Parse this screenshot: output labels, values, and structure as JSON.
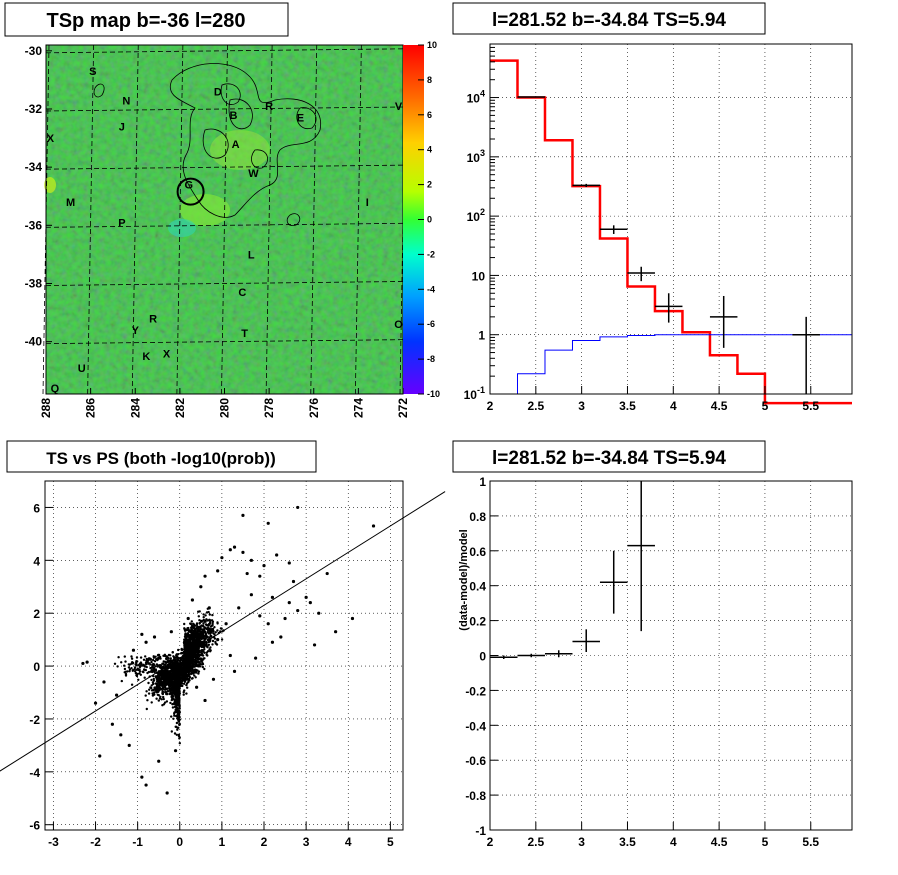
{
  "chart_data": [
    {
      "type": "heatmap",
      "title": "TSp map b=-36 l=280",
      "xlabel": "",
      "ylabel": "",
      "x_ticks": [
        "288",
        "286",
        "284",
        "282",
        "280",
        "278",
        "276",
        "274",
        "272"
      ],
      "y_ticks": [
        "-30",
        "-32",
        "-34",
        "-36",
        "-38",
        "-40"
      ],
      "colorbar_ticks": [
        "10",
        "8",
        "6",
        "4",
        "2",
        "0",
        "-2",
        "-4",
        "-6",
        "-8",
        "-10"
      ],
      "xlim": [
        288,
        272
      ],
      "ylim": [
        -41.8,
        -29.8
      ],
      "zlim": [
        -10,
        10
      ],
      "background_value": 0.5,
      "source_labels": [
        {
          "name": "S",
          "l": 285.9,
          "b": -30.7
        },
        {
          "name": "N",
          "l": 284.4,
          "b": -31.7
        },
        {
          "name": "J",
          "l": 284.6,
          "b": -32.6
        },
        {
          "name": "D",
          "l": 280.3,
          "b": -31.4
        },
        {
          "name": "R",
          "l": 278.0,
          "b": -31.9
        },
        {
          "name": "B",
          "l": 279.6,
          "b": -32.2
        },
        {
          "name": "E",
          "l": 276.6,
          "b": -32.3
        },
        {
          "name": "V",
          "l": 272.2,
          "b": -31.9
        },
        {
          "name": "X",
          "l": 287.8,
          "b": -33.0
        },
        {
          "name": "A",
          "l": 279.5,
          "b": -33.2
        },
        {
          "name": "W",
          "l": 278.7,
          "b": -34.2
        },
        {
          "name": "G",
          "l": 281.6,
          "b": -34.6
        },
        {
          "name": "M",
          "l": 286.9,
          "b": -35.2
        },
        {
          "name": "I",
          "l": 273.6,
          "b": -35.2
        },
        {
          "name": "P",
          "l": 284.6,
          "b": -35.9
        },
        {
          "name": "L",
          "l": 278.8,
          "b": -37.0
        },
        {
          "name": "C",
          "l": 279.2,
          "b": -38.3
        },
        {
          "name": "R",
          "l": 283.2,
          "b": -39.2
        },
        {
          "name": "Y",
          "l": 284.0,
          "b": -39.6
        },
        {
          "name": "T",
          "l": 279.1,
          "b": -39.7
        },
        {
          "name": "O",
          "l": 272.2,
          "b": -39.4
        },
        {
          "name": "X",
          "l": 282.6,
          "b": -40.4
        },
        {
          "name": "K",
          "l": 283.5,
          "b": -40.5
        },
        {
          "name": "U",
          "l": 286.4,
          "b": -40.9
        },
        {
          "name": "Q",
          "l": 287.6,
          "b": -41.6
        }
      ],
      "marker_circle": {
        "l": 281.52,
        "b": -34.84
      }
    },
    {
      "type": "line",
      "title": "l=281.52 b=-34.84 TS=5.94",
      "xlabel": "",
      "ylabel": "",
      "log_y": true,
      "xlim": [
        2,
        5.95
      ],
      "ylim": [
        0.1,
        80000
      ],
      "x_ticks": [
        "2",
        "2.5",
        "3",
        "3.5",
        "4",
        "4.5",
        "5",
        "5.5"
      ],
      "y_ticks": [
        "10^-1",
        "1",
        "10",
        "10^2",
        "10^3",
        "10^4"
      ],
      "series": [
        {
          "color": "#ff0000",
          "edges": [
            2,
            2.3,
            2.6,
            2.9,
            3.2,
            3.5,
            3.8,
            4.1,
            4.4,
            4.7,
            5.0,
            5.3,
            5.6,
            5.95
          ],
          "values": [
            42000,
            10000,
            1900,
            320,
            42,
            6.5,
            2.5,
            1.1,
            0.45,
            0.22,
            0.07,
            0.07,
            0.07
          ]
        },
        {
          "color": "#0000ff",
          "edges": [
            2,
            2.3,
            2.6,
            2.9,
            3.2,
            3.5,
            3.8,
            4.1,
            4.4,
            4.7,
            5.0,
            5.3,
            5.6,
            5.95
          ],
          "values": [
            0.1,
            0.22,
            0.55,
            0.8,
            0.92,
            0.97,
            1.0,
            1.0,
            1.0,
            1.0,
            1.0,
            1.0,
            1.0
          ]
        },
        {
          "color": "#000000",
          "points": [
            {
              "x": 2.45,
              "y": 10200,
              "xerr": 0.15,
              "ylo": 10000,
              "yhi": 10400
            },
            {
              "x": 3.05,
              "y": 330,
              "xerr": 0.15,
              "ylo": 310,
              "yhi": 350
            },
            {
              "x": 3.35,
              "y": 60,
              "xerr": 0.15,
              "ylo": 50,
              "yhi": 70
            },
            {
              "x": 3.65,
              "y": 11,
              "xerr": 0.15,
              "ylo": 8,
              "yhi": 14
            },
            {
              "x": 3.95,
              "y": 3,
              "xerr": 0.15,
              "ylo": 1.6,
              "yhi": 5
            },
            {
              "x": 4.55,
              "y": 2,
              "xerr": 0.15,
              "ylo": 0.6,
              "yhi": 4.5
            },
            {
              "x": 5.45,
              "y": 1,
              "xerr": 0.15,
              "ylo": 0.1,
              "yhi": 2
            }
          ]
        }
      ]
    },
    {
      "type": "scatter",
      "title": "TS vs PS (both -log10(prob))",
      "xlabel": "",
      "ylabel": "",
      "xlim": [
        -3.2,
        5.3
      ],
      "ylim": [
        -6.2,
        7.0
      ],
      "x_ticks": [
        "-3",
        "-2",
        "-1",
        "0",
        "1",
        "2",
        "3",
        "4",
        "5"
      ],
      "y_ticks": [
        "-6",
        "-4",
        "-2",
        "0",
        "2",
        "4",
        "6"
      ],
      "fit_line": {
        "slope": 1.0,
        "intercept": 0.3
      },
      "points": [
        [
          -2.3,
          0.1
        ],
        [
          -2.2,
          0.15
        ],
        [
          -2.0,
          -1.4
        ],
        [
          -1.8,
          -0.6
        ],
        [
          -1.9,
          -3.4
        ],
        [
          -1.6,
          -2.2
        ],
        [
          -1.4,
          -2.6
        ],
        [
          -1.2,
          -3.0
        ],
        [
          -0.9,
          -4.2
        ],
        [
          -0.8,
          -4.5
        ],
        [
          -0.3,
          -4.8
        ],
        [
          -0.5,
          -3.6
        ],
        [
          -0.1,
          -3.2
        ],
        [
          -1.5,
          -1.1
        ],
        [
          -1.1,
          0.6
        ],
        [
          -0.8,
          0.9
        ],
        [
          -0.6,
          1.1
        ],
        [
          -0.9,
          1.2
        ],
        [
          0.2,
          1.8
        ],
        [
          0.3,
          2.5
        ],
        [
          0.5,
          3.0
        ],
        [
          0.6,
          3.4
        ],
        [
          0.9,
          3.6
        ],
        [
          1.0,
          4.1
        ],
        [
          1.2,
          4.4
        ],
        [
          1.3,
          4.5
        ],
        [
          1.5,
          4.3
        ],
        [
          1.6,
          3.5
        ],
        [
          1.7,
          4.0
        ],
        [
          1.5,
          5.7
        ],
        [
          2.1,
          5.4
        ],
        [
          2.3,
          4.2
        ],
        [
          1.9,
          3.4
        ],
        [
          2.0,
          3.8
        ],
        [
          2.2,
          2.6
        ],
        [
          2.1,
          1.6
        ],
        [
          2.5,
          1.8
        ],
        [
          2.6,
          2.4
        ],
        [
          2.8,
          2.1
        ],
        [
          2.7,
          3.2
        ],
        [
          2.8,
          6.0
        ],
        [
          3.1,
          2.4
        ],
        [
          3.2,
          0.8
        ],
        [
          3.5,
          3.5
        ],
        [
          3.7,
          1.3
        ],
        [
          4.1,
          1.8
        ],
        [
          4.6,
          5.3
        ],
        [
          2.2,
          0.9
        ],
        [
          1.8,
          0.3
        ],
        [
          1.3,
          -0.2
        ],
        [
          0.8,
          -0.5
        ],
        [
          0.4,
          -0.8
        ],
        [
          0.6,
          -1.3
        ],
        [
          -0.3,
          -0.4
        ],
        [
          -0.5,
          0.3
        ],
        [
          0.9,
          1.0
        ],
        [
          1.1,
          1.6
        ],
        [
          1.4,
          2.2
        ],
        [
          1.7,
          2.7
        ],
        [
          0.7,
          2.2
        ],
        [
          -0.2,
          1.3
        ],
        [
          2.4,
          1.1
        ],
        [
          1.9,
          1.9
        ],
        [
          3.0,
          2.6
        ],
        [
          3.3,
          2.0
        ],
        [
          2.6,
          3.9
        ],
        [
          1.2,
          0.4
        ]
      ]
    },
    {
      "type": "scatter",
      "title": "l=281.52 b=-34.84 TS=5.94",
      "xlabel": "",
      "ylabel": "(data-model)/model",
      "xlim": [
        2,
        5.95
      ],
      "ylim": [
        -1,
        1
      ],
      "x_ticks": [
        "2",
        "2.5",
        "3",
        "3.5",
        "4",
        "4.5",
        "5",
        "5.5"
      ],
      "y_ticks": [
        "-1",
        "-0.8",
        "-0.6",
        "-0.4",
        "-0.2",
        "0",
        "0.2",
        "0.4",
        "0.6",
        "0.8",
        "1"
      ],
      "points": [
        {
          "x": 2.15,
          "y": -0.01,
          "xerr": 0.15,
          "ylo": -0.02,
          "yhi": 0.0
        },
        {
          "x": 2.45,
          "y": 0.0,
          "xerr": 0.15,
          "ylo": -0.01,
          "yhi": 0.01
        },
        {
          "x": 2.75,
          "y": 0.01,
          "xerr": 0.15,
          "ylo": -0.01,
          "yhi": 0.03
        },
        {
          "x": 3.05,
          "y": 0.08,
          "xerr": 0.15,
          "ylo": 0.02,
          "yhi": 0.15
        },
        {
          "x": 3.35,
          "y": 0.42,
          "xerr": 0.15,
          "ylo": 0.24,
          "yhi": 0.6
        },
        {
          "x": 3.65,
          "y": 0.63,
          "xerr": 0.15,
          "ylo": 0.14,
          "yhi": 1.0
        }
      ]
    }
  ]
}
